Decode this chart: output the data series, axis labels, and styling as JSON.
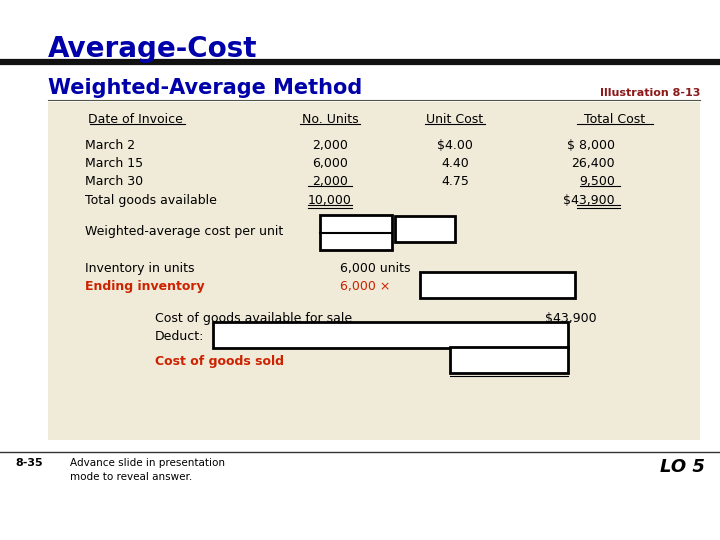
{
  "title": "Average-Cost",
  "subtitle": "Weighted-Average Method",
  "illustration": "Illustration 8-13",
  "bg_color": "#f0ead8",
  "title_color": "#0000aa",
  "subtitle_color": "#0000aa",
  "illustration_color": "#8b1a1a",
  "red_text_color": "#cc2200",
  "table_headers": [
    "Date of Invoice",
    "No. Units",
    "Unit Cost",
    "Total Cost"
  ],
  "rows": [
    [
      "March 2",
      "2,000",
      "$4.00",
      "$ 8,000"
    ],
    [
      "March 15",
      "6,000",
      "4.40",
      "26,400"
    ],
    [
      "March 30",
      "2,000",
      "4.75",
      "9,500"
    ]
  ],
  "footer_text": "Advance slide in presentation\nmode to reveal answer.",
  "slide_ref": "8-35",
  "lo_text": "LO 5"
}
